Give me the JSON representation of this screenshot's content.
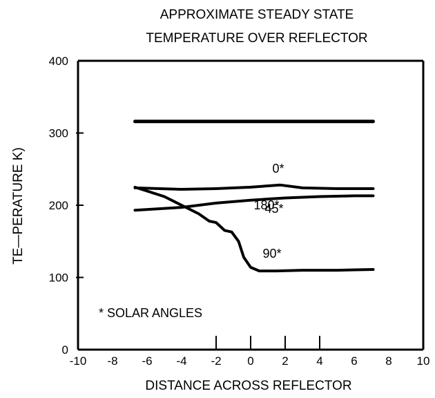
{
  "chart_data": {
    "type": "line",
    "title": [
      "APPROXIMATE STEADY STATE",
      "TEMPERATURE OVER REFLECTOR"
    ],
    "xlabel": "DISTANCE ACROSS REFLECTOR",
    "ylabel": "TE—PERATURE K)",
    "xlim": [
      -10,
      10
    ],
    "ylim": [
      0,
      400
    ],
    "x_ticks": [
      "-10",
      "-8",
      "-6",
      "-4",
      "-2",
      "0",
      "2",
      "4",
      "6",
      "8",
      "10"
    ],
    "y_ticks": [
      "0",
      "100",
      "200",
      "300",
      "400"
    ],
    "grid": false,
    "series": [
      {
        "name": "180*",
        "x": [
          -6.7,
          7.1
        ],
        "y": [
          316,
          316
        ]
      },
      {
        "name": "0*",
        "x": [
          -6.7,
          -4,
          -2,
          0,
          1.7,
          3,
          5,
          7.1
        ],
        "y": [
          224,
          222,
          223,
          225,
          228,
          224,
          223,
          223
        ]
      },
      {
        "name": "45*",
        "x": [
          -6.7,
          -4,
          -2,
          0,
          2,
          4,
          6,
          7.1
        ],
        "y": [
          193,
          197,
          203,
          207,
          210,
          212,
          213,
          213
        ]
      },
      {
        "name": "90*",
        "x": [
          -6.7,
          -5,
          -4,
          -3,
          -2.4,
          -2,
          -1.5,
          -1.1,
          -0.7,
          -0.4,
          0,
          0.5,
          1.5,
          3,
          5,
          7.1
        ],
        "y": [
          225,
          212,
          200,
          188,
          178,
          176,
          165,
          163,
          150,
          128,
          114,
          109,
          109,
          110,
          110,
          111
        ]
      }
    ],
    "annotations": [
      "180*",
      "0*",
      "45*",
      "90*"
    ],
    "note": "* SOLAR ANGLES"
  }
}
